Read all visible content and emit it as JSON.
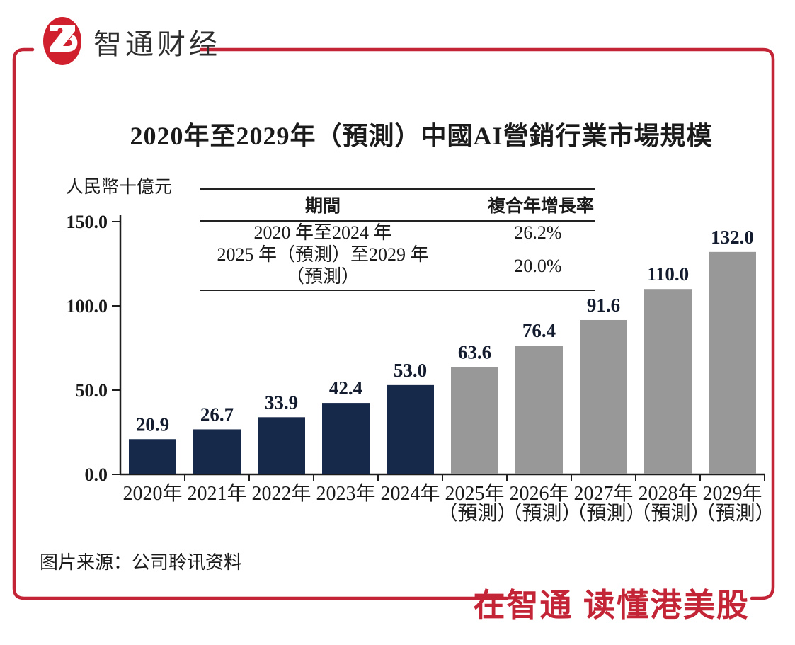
{
  "brand": {
    "name": "智通财经",
    "monogram": "ZG"
  },
  "title": "2020年至2029年（預測）中國AI營銷行業市場規模",
  "unit_label": "人民幣十億元",
  "cagr_table": {
    "headers": [
      "期間",
      "複合年增長率"
    ],
    "rows": [
      {
        "period": "2020 年至2024 年",
        "cagr": "26.2%"
      },
      {
        "period": "2025 年（預測）至2029 年（預測）",
        "cagr": "20.0%"
      }
    ]
  },
  "chart_data": {
    "type": "bar",
    "title": "2020年至2029年（預測）中國AI營銷行業市場規模",
    "ylabel": "人民幣十億元",
    "categories": [
      "2020年",
      "2021年",
      "2022年",
      "2023年",
      "2024年",
      "2025年",
      "2026年",
      "2027年",
      "2028年",
      "2029年"
    ],
    "forecast_suffix": "（預測）",
    "actual_count": 5,
    "values": [
      20.9,
      26.7,
      33.9,
      42.4,
      53.0,
      63.6,
      76.4,
      91.6,
      110.0,
      132.0
    ],
    "value_labels": [
      "20.9",
      "26.7",
      "33.9",
      "42.4",
      "53.0",
      "63.6",
      "76.4",
      "91.6",
      "110.0",
      "132.0"
    ],
    "ylim": [
      0,
      150
    ],
    "yticks": [
      0,
      50,
      100,
      150
    ],
    "ytick_labels": [
      "0.0",
      "50.0",
      "100.0",
      "150.0"
    ],
    "grid": "off",
    "legend": "none",
    "bar_color_actual": "#17294a",
    "bar_color_forecast": "#989898"
  },
  "source_text": "图片来源：公司聆讯资料",
  "slogan": "在智通 读懂港美股",
  "colors": {
    "red": "#c32536",
    "logo_red": "#d0202e",
    "navy": "#17294a",
    "gray": "#989898",
    "text": "#1a1a1a"
  }
}
